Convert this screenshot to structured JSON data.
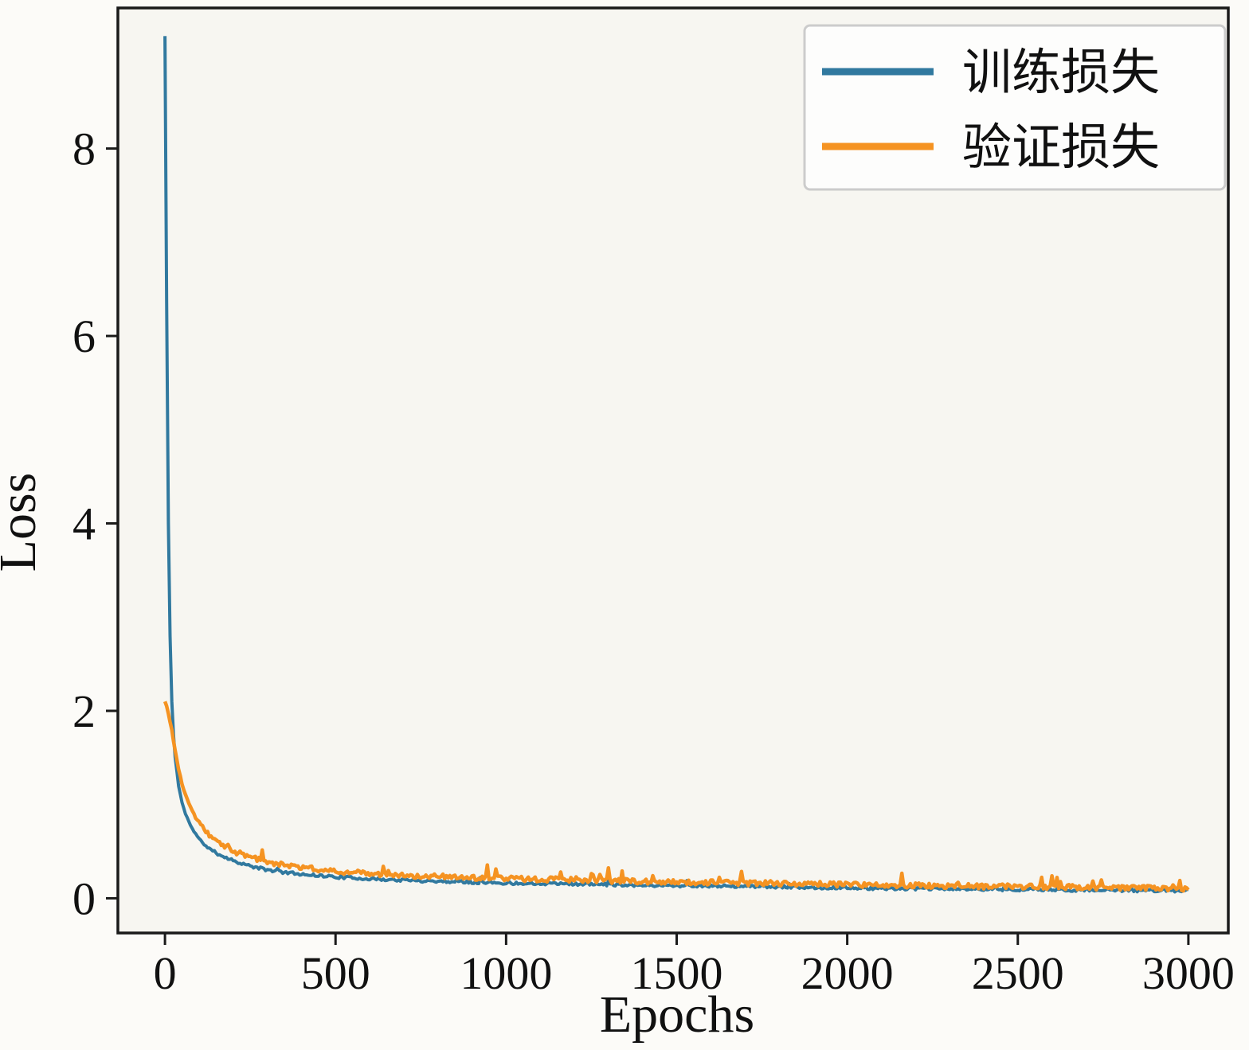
{
  "figure": {
    "background": "#fcfbf8",
    "plot_background": "#f7f6f1",
    "spine_color": "#1a1a1a",
    "tick_color": "#1a1a1a"
  },
  "chart_data": {
    "type": "line",
    "title": "",
    "xlabel": "Epochs",
    "ylabel": "Loss",
    "xlim": [
      -138,
      3117
    ],
    "ylim": [
      -0.37,
      9.5
    ],
    "xticks": [
      0,
      500,
      1000,
      1500,
      2000,
      2500,
      3000
    ],
    "yticks": [
      0,
      2,
      4,
      6,
      8
    ],
    "grid": false,
    "legend_position": "upper right",
    "series": [
      {
        "name": "训练损失",
        "color": "#31799f",
        "line_width": 4,
        "anchors": [
          [
            0,
            9.2
          ],
          [
            2,
            8.1
          ],
          [
            4,
            6.9
          ],
          [
            6,
            5.8
          ],
          [
            8,
            4.8
          ],
          [
            10,
            4.0
          ],
          [
            13,
            3.2
          ],
          [
            16,
            2.6
          ],
          [
            20,
            2.1
          ],
          [
            25,
            1.75
          ],
          [
            30,
            1.5
          ],
          [
            40,
            1.2
          ],
          [
            50,
            1.02
          ],
          [
            60,
            0.9
          ],
          [
            80,
            0.74
          ],
          [
            100,
            0.63
          ],
          [
            125,
            0.54
          ],
          [
            150,
            0.48
          ],
          [
            200,
            0.4
          ],
          [
            250,
            0.34
          ],
          [
            300,
            0.3
          ],
          [
            350,
            0.275
          ],
          [
            400,
            0.255
          ],
          [
            500,
            0.225
          ],
          [
            600,
            0.205
          ],
          [
            700,
            0.19
          ],
          [
            800,
            0.18
          ],
          [
            900,
            0.17
          ],
          [
            1000,
            0.16
          ],
          [
            1200,
            0.15
          ],
          [
            1400,
            0.138
          ],
          [
            1600,
            0.128
          ],
          [
            1800,
            0.118
          ],
          [
            2000,
            0.108
          ],
          [
            2200,
            0.1
          ],
          [
            2400,
            0.094
          ],
          [
            2600,
            0.088
          ],
          [
            2800,
            0.082
          ],
          [
            3000,
            0.078
          ]
        ],
        "noise": {
          "seed": 11,
          "amplitude": 0.03,
          "spike_prob": 0.02,
          "spike_amplitude": 0.06
        }
      },
      {
        "name": "验证损失",
        "color": "#f59322",
        "line_width": 4.5,
        "anchors": [
          [
            0,
            2.1
          ],
          [
            5,
            2.05
          ],
          [
            10,
            1.97
          ],
          [
            15,
            1.88
          ],
          [
            20,
            1.78
          ],
          [
            25,
            1.68
          ],
          [
            30,
            1.57
          ],
          [
            40,
            1.38
          ],
          [
            50,
            1.22
          ],
          [
            60,
            1.1
          ],
          [
            80,
            0.92
          ],
          [
            100,
            0.8
          ],
          [
            125,
            0.69
          ],
          [
            150,
            0.61
          ],
          [
            200,
            0.5
          ],
          [
            250,
            0.43
          ],
          [
            300,
            0.385
          ],
          [
            350,
            0.35
          ],
          [
            400,
            0.325
          ],
          [
            500,
            0.285
          ],
          [
            600,
            0.26
          ],
          [
            700,
            0.24
          ],
          [
            800,
            0.228
          ],
          [
            900,
            0.215
          ],
          [
            1000,
            0.205
          ],
          [
            1200,
            0.19
          ],
          [
            1400,
            0.175
          ],
          [
            1600,
            0.163
          ],
          [
            1800,
            0.152
          ],
          [
            2000,
            0.142
          ],
          [
            2200,
            0.132
          ],
          [
            2400,
            0.122
          ],
          [
            2600,
            0.115
          ],
          [
            2800,
            0.108
          ],
          [
            3000,
            0.098
          ]
        ],
        "noise": {
          "seed": 23,
          "amplitude": 0.055,
          "spike_prob": 0.05,
          "spike_amplitude": 0.15
        }
      }
    ]
  },
  "legend": {
    "entries": [
      {
        "label": "训练损失",
        "color": "#31799f"
      },
      {
        "label": "验证损失",
        "color": "#f59322"
      }
    ]
  }
}
